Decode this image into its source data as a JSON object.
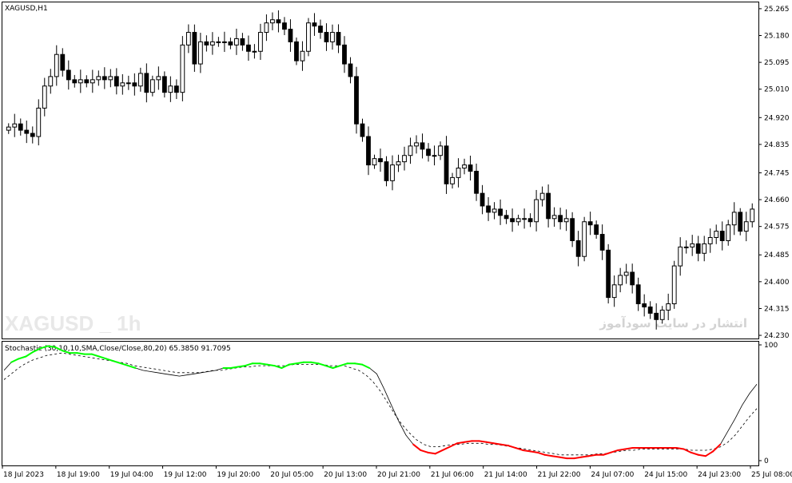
{
  "symbol_label": "XAGUSD,H1",
  "watermark_symbol": "XAGUSD _ 1h",
  "watermark_persian": "انتشار در سایت سودآموز",
  "indicator_label": "Stochastic (30,10,10,SMA,Close/Close,80,20) 65.3850 91.7095",
  "colors": {
    "up_candle": "#ffffff",
    "down_candle": "#000000",
    "stoch_high": "#00ff00",
    "stoch_low": "#ff0000",
    "stoch_main": "#000000",
    "stoch_signal": "#000000"
  },
  "chart_data": [
    {
      "type": "candlestick",
      "title": "XAGUSD,H1",
      "y_ticks": [
        "25.265",
        "25.180",
        "25.095",
        "25.010",
        "24.920",
        "24.835",
        "24.745",
        "24.660",
        "24.575",
        "24.485",
        "24.400",
        "24.315",
        "24.230"
      ],
      "ylim": [
        24.22,
        25.285
      ],
      "x_ticks": [
        "18 Jul 2023",
        "18 Jul 19:00",
        "19 Jul 04:00",
        "19 Jul 12:00",
        "19 Jul 20:00",
        "20 Jul 05:00",
        "20 Jul 13:00",
        "20 Jul 21:00",
        "21 Jul 06:00",
        "21 Jul 14:00",
        "21 Jul 22:00",
        "24 Jul 07:00",
        "24 Jul 15:00",
        "24 Jul 23:00",
        "25 Jul 08:00"
      ],
      "close": [
        24.89,
        24.9,
        24.88,
        24.87,
        24.86,
        24.95,
        25.02,
        25.05,
        25.12,
        25.07,
        25.04,
        25.03,
        25.04,
        25.03,
        25.04,
        25.05,
        25.04,
        25.05,
        25.02,
        25.03,
        25.03,
        25.02,
        25.06,
        25.0,
        25.04,
        25.05,
        25.0,
        25.02,
        25.0,
        25.15,
        25.19,
        25.09,
        25.16,
        25.15,
        25.16,
        25.16,
        25.16,
        25.15,
        25.17,
        25.15,
        25.13,
        25.13,
        25.19,
        25.22,
        25.23,
        25.22,
        25.2,
        25.16,
        25.1,
        25.13,
        25.22,
        25.21,
        25.19,
        25.16,
        25.19,
        25.15,
        25.09,
        25.05,
        24.9,
        24.86,
        24.77,
        24.79,
        24.78,
        24.72,
        24.77,
        24.78,
        24.8,
        24.83,
        24.84,
        24.82,
        24.8,
        24.8,
        24.83,
        24.71,
        24.73,
        24.76,
        24.77,
        24.75,
        24.68,
        24.64,
        24.62,
        24.63,
        24.61,
        24.6,
        24.59,
        24.6,
        24.6,
        24.59,
        24.66,
        24.68,
        24.6,
        24.61,
        24.59,
        24.6,
        24.53,
        24.48,
        24.59,
        24.58,
        24.55,
        24.5,
        24.35,
        24.39,
        24.42,
        24.43,
        24.39,
        24.33,
        24.32,
        24.3,
        24.28,
        24.31,
        24.33,
        24.45,
        24.51,
        24.51,
        24.52,
        24.49,
        24.52,
        24.54,
        24.56,
        24.53,
        24.58,
        24.62,
        24.56,
        24.59,
        24.63
      ],
      "series": [
        {
          "name": "Stochastic main",
          "values": [
            78,
            85,
            88,
            90,
            94,
            97,
            99,
            98,
            95,
            93,
            93,
            92,
            92,
            90,
            88,
            86,
            84,
            82,
            80,
            78,
            77,
            76,
            75,
            74,
            73,
            74,
            75,
            76,
            77,
            78,
            80,
            80,
            81,
            82,
            84,
            84,
            83,
            82,
            80,
            83,
            84,
            85,
            85,
            84,
            82,
            80,
            82,
            84,
            84,
            83,
            80,
            75,
            62,
            48,
            34,
            22,
            14,
            9,
            7,
            6,
            9,
            12,
            15,
            16,
            17,
            17,
            16,
            15,
            14,
            13,
            11,
            9,
            8,
            7,
            5,
            4,
            3,
            2,
            2,
            3,
            4,
            5,
            5,
            7,
            9,
            10,
            11,
            11,
            11,
            11,
            11,
            11,
            11,
            10,
            7,
            5,
            4,
            8,
            14,
            25,
            36,
            48,
            58,
            66
          ]
        },
        {
          "name": "Stochastic signal",
          "values": [
            70,
            75,
            80,
            84,
            87,
            89,
            91,
            92,
            93,
            92,
            91,
            90,
            89,
            88,
            87,
            86,
            85,
            84,
            82,
            81,
            80,
            79,
            78,
            77,
            76,
            76,
            76,
            76,
            77,
            78,
            78,
            79,
            80,
            81,
            81,
            82,
            82,
            82,
            82,
            82,
            83,
            83,
            83,
            83,
            83,
            82,
            82,
            82,
            80,
            78,
            74,
            68,
            60,
            50,
            40,
            31,
            24,
            18,
            14,
            12,
            12,
            13,
            14,
            14,
            15,
            15,
            15,
            14,
            14,
            13,
            12,
            11,
            10,
            9,
            8,
            7,
            6,
            5,
            5,
            5,
            5,
            5,
            6,
            6,
            7,
            8,
            9,
            9,
            10,
            10,
            10,
            10,
            10,
            10,
            10,
            9,
            9,
            9,
            10,
            12,
            16,
            22,
            30,
            38,
            45
          ]
        }
      ],
      "stoch_ylim": [
        0,
        100
      ],
      "stoch_y_ticks": [
        "100",
        "0"
      ],
      "stoch_levels": [
        80,
        20
      ]
    }
  ]
}
